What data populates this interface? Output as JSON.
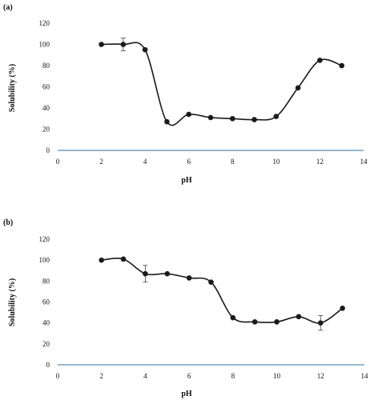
{
  "chart_data": [
    {
      "type": "line",
      "panel_label": "(a)",
      "xlabel": "pH",
      "ylabel": "Solubility (%)",
      "xlim": [
        0,
        14
      ],
      "ylim": [
        0,
        120
      ],
      "xticks": [
        "0",
        "2",
        "4",
        "6",
        "8",
        "10",
        "12",
        "14"
      ],
      "yticks": [
        "0",
        "20",
        "40",
        "60",
        "80",
        "100",
        "120"
      ],
      "grid": false,
      "smooth": true,
      "line_color": "#1a1a1a",
      "axis_color": "#2f6f9f",
      "x": [
        2,
        3,
        4,
        5,
        6,
        7,
        8,
        9,
        10,
        11,
        12,
        13
      ],
      "y": [
        100,
        100,
        95,
        27,
        34,
        31,
        30,
        29,
        32,
        59,
        85,
        80
      ],
      "error": [
        0,
        6,
        0,
        0,
        0,
        0,
        0,
        0,
        0,
        0,
        0,
        0
      ]
    },
    {
      "type": "line",
      "panel_label": "(b)",
      "xlabel": "pH",
      "ylabel": "Solubility (%)",
      "xlim": [
        0,
        14
      ],
      "ylim": [
        0,
        120
      ],
      "xticks": [
        "0",
        "2",
        "4",
        "6",
        "8",
        "10",
        "12",
        "14"
      ],
      "yticks": [
        "0",
        "20",
        "40",
        "60",
        "80",
        "100",
        "120"
      ],
      "grid": false,
      "smooth": true,
      "line_color": "#1a1a1a",
      "axis_color": "#2f6f9f",
      "x": [
        2,
        3,
        4,
        5,
        6,
        7,
        8,
        9,
        10,
        11,
        12,
        13
      ],
      "y": [
        100,
        101,
        87,
        87,
        83,
        79,
        45,
        41,
        41,
        46,
        40,
        54
      ],
      "error": [
        0,
        0,
        8,
        0,
        0,
        0,
        0,
        0,
        0,
        0,
        7,
        0
      ]
    }
  ]
}
